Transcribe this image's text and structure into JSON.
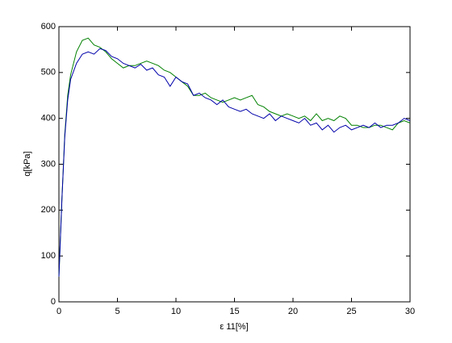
{
  "chart_data": {
    "type": "line",
    "xlabel": "ε 11[%]",
    "ylabel": "q[kPa]",
    "x": [
      0,
      0.25,
      0.5,
      0.75,
      1,
      1.5,
      2,
      2.5,
      3,
      3.5,
      4,
      4.5,
      5,
      5.5,
      6,
      6.5,
      7,
      7.5,
      8,
      8.5,
      9,
      9.5,
      10,
      10.5,
      11,
      11.5,
      12,
      12.5,
      13,
      13.5,
      14,
      14.5,
      15,
      15.5,
      16,
      16.5,
      17,
      17.5,
      18,
      18.5,
      19,
      19.5,
      20,
      20.5,
      21,
      21.5,
      22,
      22.5,
      23,
      23.5,
      24,
      24.5,
      25,
      25.5,
      26,
      26.5,
      27,
      27.5,
      28,
      28.5,
      29,
      29.5,
      30
    ],
    "series": [
      {
        "color": "#008000",
        "values": [
          55,
          220,
          365,
          450,
          495,
          545,
          570,
          575,
          560,
          555,
          545,
          530,
          520,
          510,
          515,
          515,
          520,
          525,
          520,
          515,
          505,
          500,
          490,
          480,
          470,
          450,
          450,
          455,
          445,
          440,
          435,
          440,
          445,
          440,
          445,
          450,
          430,
          425,
          415,
          410,
          405,
          410,
          405,
          400,
          405,
          395,
          410,
          395,
          400,
          395,
          405,
          400,
          385,
          385,
          380,
          380,
          385,
          385,
          380,
          375,
          390,
          395,
          390
        ]
      },
      {
        "color": "#0000aa",
        "values": [
          55,
          220,
          360,
          440,
          485,
          520,
          540,
          545,
          540,
          552,
          548,
          535,
          530,
          520,
          515,
          510,
          518,
          505,
          510,
          495,
          490,
          470,
          490,
          480,
          475,
          450,
          455,
          445,
          440,
          430,
          440,
          425,
          420,
          415,
          420,
          410,
          405,
          400,
          410,
          395,
          405,
          400,
          395,
          390,
          400,
          385,
          390,
          375,
          385,
          370,
          380,
          385,
          375,
          380,
          385,
          380,
          390,
          380,
          385,
          385,
          390,
          400,
          395
        ]
      }
    ],
    "xlim": [
      0,
      30
    ],
    "xticks": [
      0,
      5,
      10,
      15,
      20,
      25,
      30
    ],
    "ylim": [
      0,
      600
    ],
    "yticks": [
      0,
      100,
      200,
      300,
      400,
      500,
      600
    ]
  }
}
